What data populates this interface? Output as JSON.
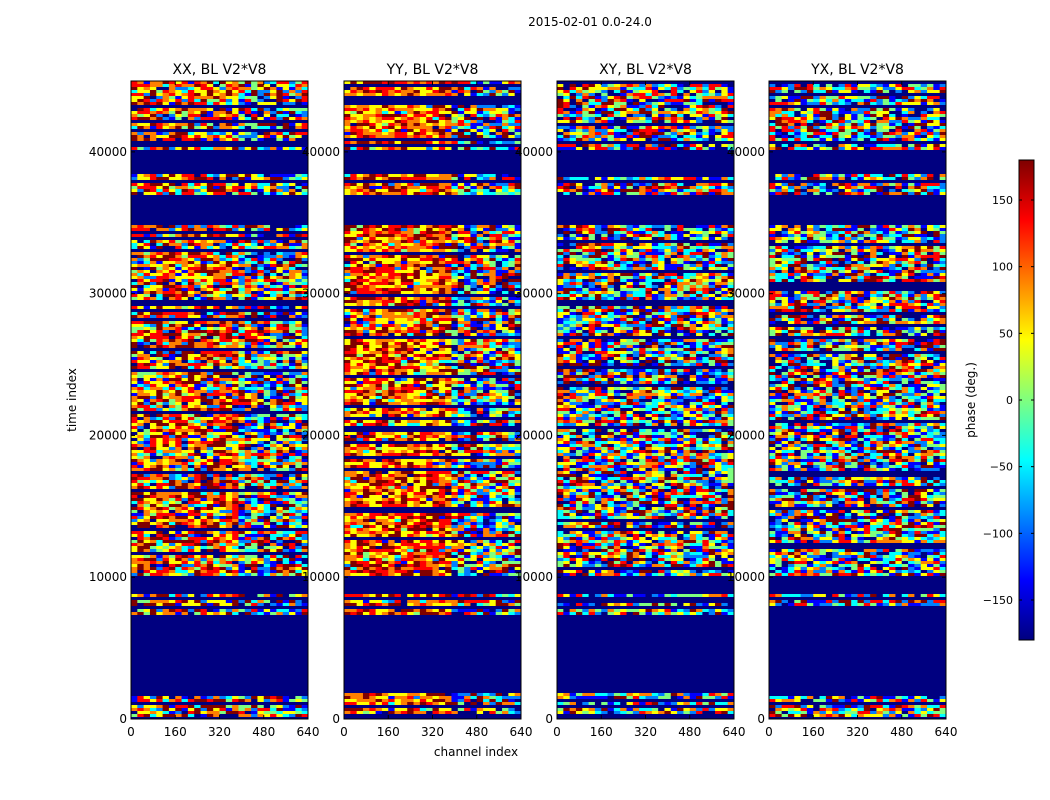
{
  "figure_title": "2015-02-01 0.0-24.0",
  "colors": {
    "band_solid": "#000080",
    "jet_stops": [
      "#00007f",
      "#0000ff",
      "#007fff",
      "#00ffff",
      "#7fff7f",
      "#ffff00",
      "#ff7f00",
      "#ff0000",
      "#7f0000"
    ]
  },
  "chart_data": {
    "type": "heatmap",
    "shared_axes": {
      "xlabel": "channel index",
      "ylabel": "time index",
      "xlim": [
        0,
        640
      ],
      "ylim": [
        0,
        45000
      ],
      "xticks": [
        0,
        160,
        320,
        480,
        640
      ],
      "yticks": [
        0,
        10000,
        20000,
        30000,
        40000
      ],
      "xtick_labels": [
        "0",
        "160",
        "320",
        "480",
        "640"
      ],
      "ytick_labels": [
        "0",
        "10000",
        "20000",
        "30000",
        "40000"
      ]
    },
    "panels": [
      {
        "title": "XX, BL V2*V8",
        "pol": "XX",
        "warm_bias": 0.55,
        "warm_split_channel": 400
      },
      {
        "title": "YY, BL V2*V8",
        "pol": "YY",
        "warm_bias": 0.85,
        "warm_split_channel": 400
      },
      {
        "title": "XY, BL V2*V8",
        "pol": "XY",
        "warm_bias": 0.0,
        "warm_split_channel": 640
      },
      {
        "title": "YX, BL V2*V8",
        "pol": "YX",
        "warm_bias": 0.0,
        "warm_split_channel": 640
      }
    ],
    "flagged_time_ranges": [
      [
        1800,
        7200
      ],
      [
        7600,
        7900
      ],
      [
        8300,
        8500
      ],
      [
        8800,
        10000
      ],
      [
        34800,
        37000
      ],
      [
        37700,
        37900
      ],
      [
        38500,
        40100
      ]
    ],
    "colorbar": {
      "label": "phase (deg.)",
      "range": [
        -180,
        180
      ],
      "ticks": [
        -150,
        -100,
        -50,
        0,
        50,
        100,
        150
      ],
      "tick_labels": [
        "−150",
        "−100",
        "−50",
        "0",
        "50",
        "100",
        "150"
      ],
      "colormap": "jet"
    }
  }
}
